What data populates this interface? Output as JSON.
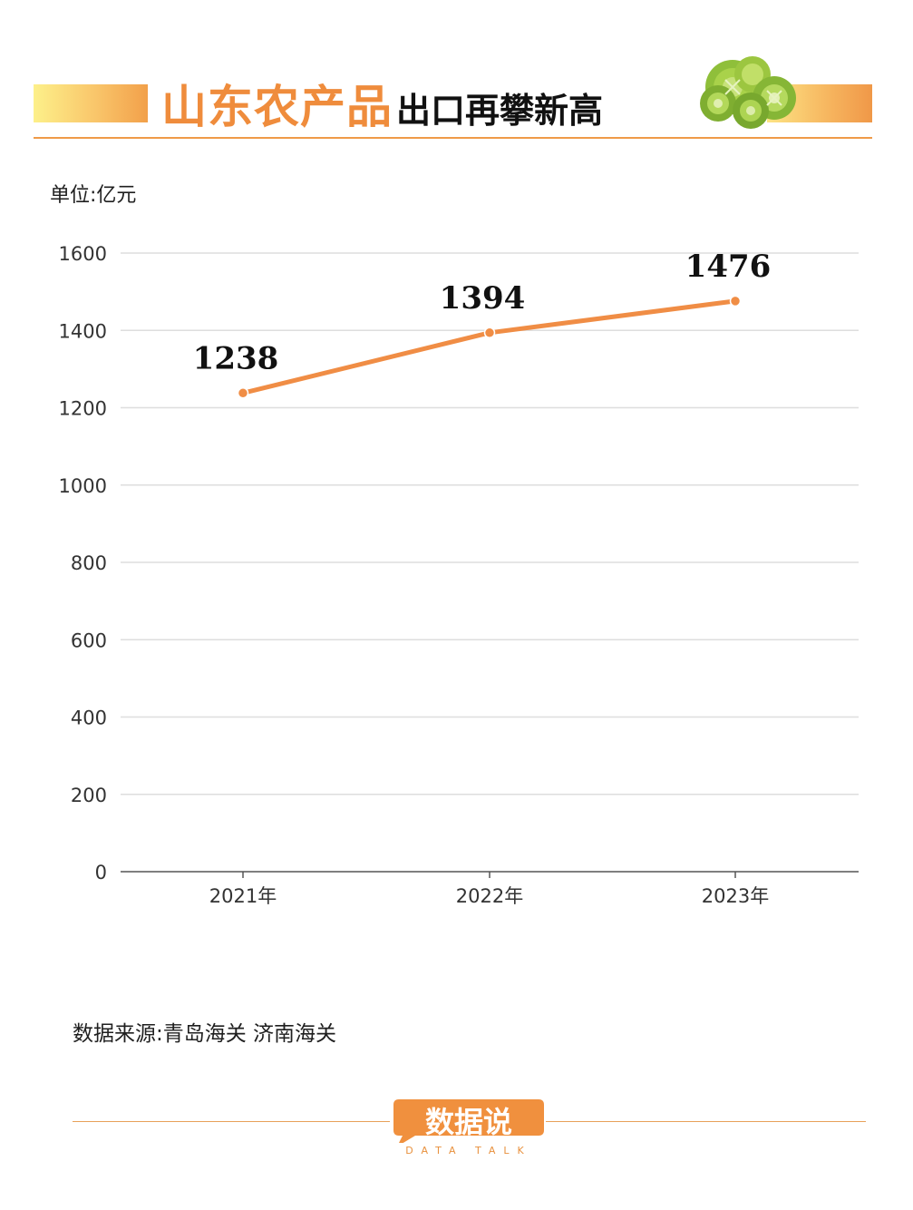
{
  "header": {
    "title_main": "山东农产品",
    "title_sub": "出口再攀新高"
  },
  "unit_label": "单位:亿元",
  "source": "数据来源:青岛海关 济南海关",
  "brand": {
    "name": "数据说",
    "tagline": "DATA TALK"
  },
  "colors": {
    "accent": "#ef8c3c",
    "line": "#f08d45",
    "grid": "#dedede"
  },
  "chart_data": {
    "type": "line",
    "title": "山东农产品出口再攀新高",
    "unit": "单位:亿元",
    "categories": [
      "2021年",
      "2022年",
      "2023年"
    ],
    "series": [
      {
        "values": [
          1238,
          1394,
          1476
        ]
      }
    ],
    "data_labels": [
      "1238",
      "1394",
      "1476"
    ],
    "yticks": [
      0,
      200,
      400,
      600,
      800,
      1000,
      1200,
      1400,
      1600
    ],
    "ylim": [
      0,
      1600
    ],
    "grid": true,
    "legend": "none"
  }
}
